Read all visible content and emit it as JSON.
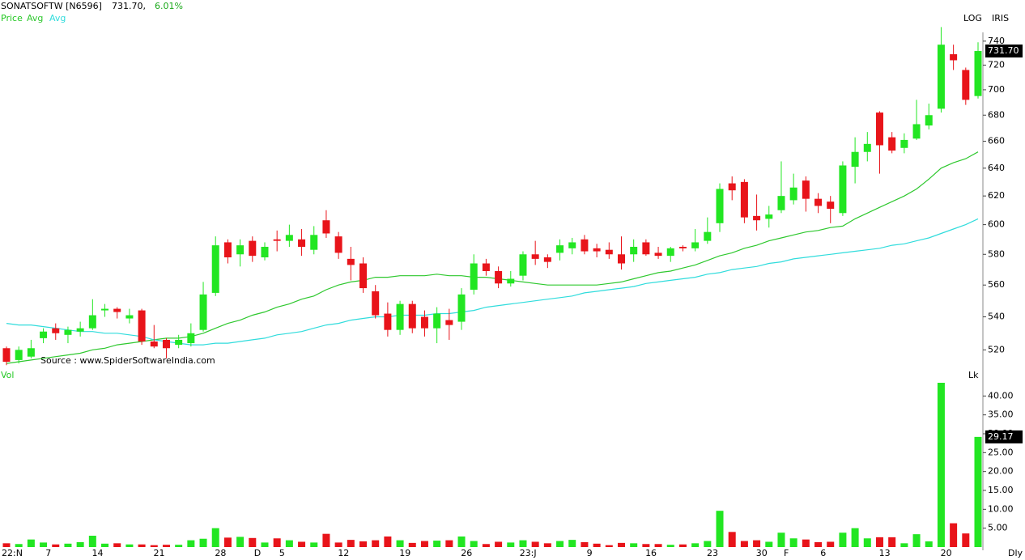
{
  "header": {
    "symbol": "SONATSOFTW [N6596]",
    "price": "731.70,",
    "change": "6.01%",
    "scale_mode": "LOG",
    "tool": "IRIS",
    "source": "Source : www.SpiderSoftwareIndia.com",
    "period": "Dly"
  },
  "chart_data": [
    {
      "type": "candlestick",
      "name": "Price",
      "log_scale": true,
      "grid": false,
      "up_color": "#22e622",
      "down_color": "#e8141a",
      "ylim": [
        505,
        760
      ],
      "yticks": [
        520,
        540,
        560,
        580,
        600,
        620,
        640,
        660,
        680,
        700,
        720,
        740
      ],
      "last_label": "731.70",
      "categories": [
        "22:N",
        null,
        null,
        null,
        "7",
        null,
        null,
        null,
        "14",
        null,
        null,
        null,
        null,
        "21",
        null,
        null,
        null,
        null,
        "28",
        null,
        null,
        "D",
        null,
        "5",
        null,
        null,
        null,
        null,
        "12",
        null,
        null,
        null,
        null,
        "19",
        null,
        null,
        null,
        null,
        "26",
        null,
        null,
        null,
        null,
        "23:J",
        null,
        null,
        null,
        null,
        "9",
        null,
        null,
        null,
        null,
        "16",
        null,
        null,
        null,
        null,
        "23",
        null,
        null,
        null,
        "30",
        null,
        "F",
        null,
        null,
        "6",
        null,
        null,
        null,
        null,
        "13",
        null,
        null,
        null,
        null,
        "20",
        null,
        null
      ],
      "open": [
        521,
        514,
        516,
        527,
        533,
        529,
        531,
        533,
        544,
        545,
        539,
        544,
        525,
        526,
        523,
        524,
        532,
        555,
        588,
        580,
        589,
        578,
        590,
        589,
        590,
        583,
        603,
        592,
        577,
        574,
        556,
        542,
        532,
        548,
        540,
        533,
        538,
        537,
        557,
        574,
        569,
        561,
        566,
        580,
        578,
        581,
        584,
        590,
        584,
        583,
        580,
        580,
        588,
        581,
        579,
        585,
        584,
        589,
        601,
        629,
        630,
        606,
        604,
        610,
        617,
        631,
        618,
        616,
        608,
        641,
        652,
        682,
        663,
        655,
        662,
        672,
        685,
        729,
        716,
        695
      ],
      "high": [
        522,
        522,
        526,
        533,
        536,
        534,
        537,
        551,
        548,
        546,
        545,
        545,
        535,
        527,
        529,
        536,
        562,
        592,
        590,
        590,
        592,
        588,
        596,
        600,
        597,
        599,
        610,
        595,
        585,
        578,
        560,
        549,
        550,
        550,
        544,
        546,
        545,
        558,
        580,
        577,
        572,
        569,
        582,
        589,
        580,
        590,
        591,
        593,
        587,
        588,
        592,
        590,
        590,
        585,
        585,
        586,
        597,
        605,
        629,
        634,
        632,
        621,
        613,
        645,
        636,
        634,
        622,
        620,
        645,
        663,
        667,
        683,
        667,
        666,
        692,
        689,
        752,
        737,
        718,
        739
      ],
      "low": [
        511,
        512,
        515,
        524,
        526,
        524,
        528,
        532,
        540,
        539,
        536,
        523,
        521,
        515,
        521,
        522,
        531,
        553,
        574,
        572,
        575,
        576,
        582,
        585,
        579,
        580,
        591,
        577,
        563,
        555,
        539,
        528,
        529,
        530,
        528,
        524,
        526,
        532,
        554,
        566,
        558,
        559,
        563,
        573,
        571,
        576,
        580,
        580,
        578,
        577,
        570,
        575,
        579,
        577,
        575,
        582,
        582,
        587,
        595,
        617,
        601,
        596,
        598,
        608,
        614,
        609,
        608,
        601,
        606,
        629,
        645,
        636,
        651,
        651,
        661,
        669,
        682,
        716,
        688,
        693
      ],
      "close": [
        513,
        520,
        521,
        531,
        530,
        532,
        533,
        541,
        545,
        543,
        541,
        525,
        522,
        521,
        526,
        530,
        554,
        586,
        578,
        586,
        579,
        585,
        589,
        593,
        585,
        593,
        594,
        581,
        573,
        558,
        541,
        532,
        548,
        533,
        533,
        542,
        535,
        554,
        574,
        569,
        561,
        564,
        580,
        577,
        575,
        586,
        588,
        582,
        582,
        580,
        574,
        585,
        580,
        579,
        584,
        584,
        588,
        595,
        625,
        624,
        605,
        603,
        607,
        620,
        626,
        618,
        613,
        611,
        642,
        652,
        658,
        657,
        653,
        661,
        673,
        680,
        737,
        724,
        692,
        731.7
      ],
      "series": [
        {
          "name": "Avg",
          "color": "#2ec82e",
          "values": [
            512,
            513,
            514,
            515,
            516,
            517,
            518,
            520,
            521,
            523,
            524,
            525,
            526,
            527,
            527,
            528,
            530,
            533,
            536,
            538,
            541,
            543,
            546,
            548,
            551,
            553,
            557,
            560,
            562,
            563,
            565,
            565,
            566,
            566,
            566,
            567,
            566,
            566,
            565,
            565,
            564,
            563,
            562,
            561,
            560,
            560,
            560,
            560,
            560,
            561,
            562,
            564,
            566,
            568,
            569,
            571,
            573,
            576,
            579,
            581,
            584,
            586,
            589,
            591,
            593,
            595,
            596,
            598,
            599,
            604,
            608,
            612,
            616,
            620,
            625,
            632,
            640,
            644,
            647,
            652
          ]
        },
        {
          "name": "Avg",
          "color": "#30dcdc",
          "values": [
            536,
            535,
            535,
            534,
            533,
            532,
            531,
            531,
            530,
            530,
            529,
            528,
            526,
            525,
            524,
            523,
            523,
            524,
            524,
            525,
            526,
            527,
            529,
            530,
            531,
            533,
            535,
            536,
            538,
            539,
            540,
            540,
            541,
            541,
            541,
            542,
            542,
            543,
            544,
            546,
            547,
            548,
            549,
            550,
            551,
            552,
            553,
            555,
            556,
            557,
            558,
            559,
            561,
            562,
            563,
            564,
            565,
            567,
            568,
            570,
            571,
            572,
            574,
            575,
            577,
            578,
            579,
            580,
            581,
            582,
            583,
            584,
            586,
            587,
            589,
            591,
            594,
            597,
            600,
            604
          ]
        }
      ]
    },
    {
      "type": "bar",
      "name": "Vol",
      "unit": "Lk",
      "ylim": [
        0,
        45
      ],
      "yticks": [
        {
          "value": 5,
          "label": "5.00"
        },
        {
          "value": 10,
          "label": "10.00"
        },
        {
          "value": 15,
          "label": "15.00"
        },
        {
          "value": 20,
          "label": "20.00"
        },
        {
          "value": 25,
          "label": "25.00"
        },
        {
          "value": 30,
          "label": "30.00"
        },
        {
          "value": 35,
          "label": "35.00"
        },
        {
          "value": 40,
          "label": "40.00"
        }
      ],
      "last_label": "29.17",
      "values": [
        1.0,
        0.8,
        2.0,
        1.2,
        0.7,
        0.9,
        1.3,
        3.0,
        0.9,
        1.0,
        0.7,
        0.7,
        0.5,
        0.6,
        0.6,
        1.8,
        2.2,
        5.0,
        2.5,
        2.7,
        2.4,
        1.2,
        2.3,
        1.8,
        1.4,
        1.2,
        3.5,
        1.2,
        1.9,
        1.5,
        1.8,
        2.8,
        1.8,
        1.1,
        1.6,
        1.7,
        1.8,
        2.8,
        1.6,
        0.8,
        1.4,
        1.2,
        1.8,
        1.4,
        1.0,
        1.6,
        1.9,
        1.3,
        0.9,
        0.5,
        1.1,
        1.0,
        0.8,
        0.8,
        0.6,
        0.7,
        1.0,
        1.6,
        9.6,
        4.0,
        1.6,
        1.8,
        1.4,
        3.8,
        2.3,
        2.0,
        1.3,
        1.4,
        3.8,
        5.0,
        2.3,
        2.6,
        2.6,
        1.0,
        3.4,
        1.5,
        43.5,
        6.3,
        3.6,
        29.17
      ]
    }
  ]
}
